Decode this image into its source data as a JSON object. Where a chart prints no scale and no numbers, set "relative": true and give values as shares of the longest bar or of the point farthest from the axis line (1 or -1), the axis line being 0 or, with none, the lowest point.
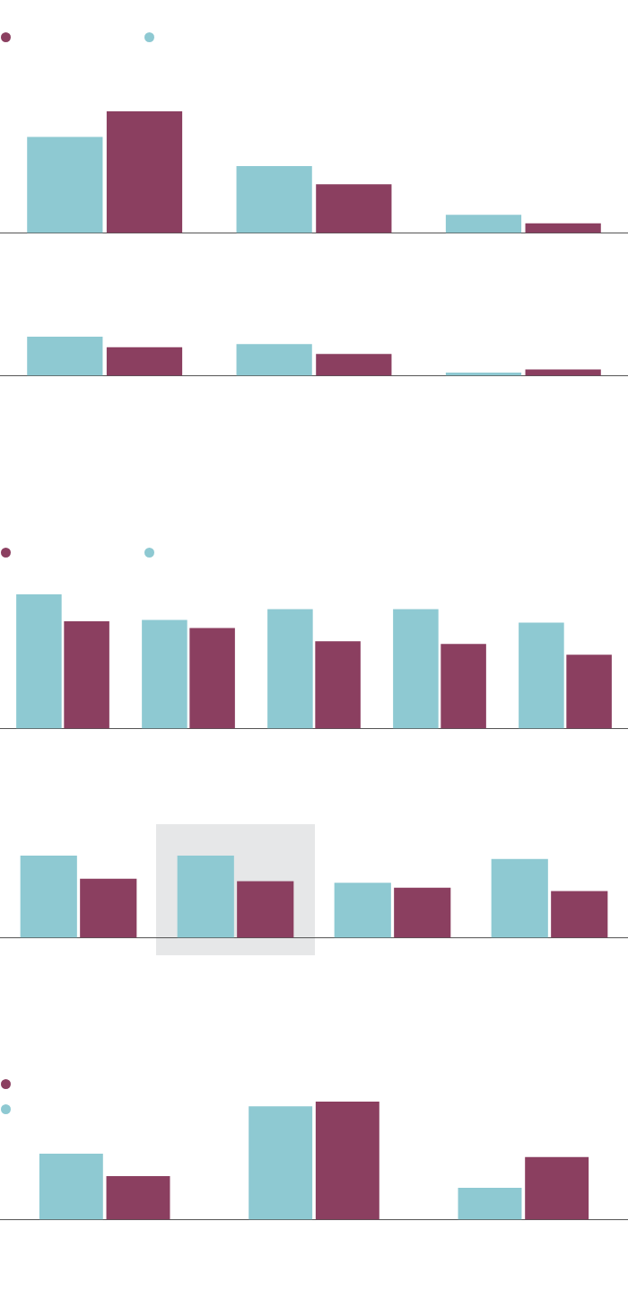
{
  "chart_data": [
    {
      "type": "bar",
      "relative": true,
      "categories": [
        null,
        null,
        null
      ],
      "series": [
        {
          "color": "#8ec9d2",
          "values": [
            0.79,
            0.55,
            0.15
          ]
        },
        {
          "color": "#8b3f60",
          "values": [
            1,
            0.4,
            0.08
          ]
        }
      ]
    },
    {
      "type": "bar",
      "relative": true,
      "categories": [
        null,
        null,
        null
      ],
      "series": [
        {
          "color": "#8ec9d2",
          "values": [
            1,
            0.81,
            0.08
          ]
        },
        {
          "color": "#8b3f60",
          "values": [
            0.73,
            0.56,
            0.16
          ]
        }
      ]
    },
    {
      "type": "bar",
      "relative": true,
      "categories": [
        null,
        null,
        null,
        null,
        null
      ],
      "series": [
        {
          "color": "#8ec9d2",
          "values": [
            1,
            0.81,
            0.89,
            0.89,
            0.79
          ]
        },
        {
          "color": "#8b3f60",
          "values": [
            0.8,
            0.75,
            0.65,
            0.63,
            0.55
          ]
        }
      ]
    },
    {
      "type": "bar",
      "relative": true,
      "categories": [
        null,
        null,
        null,
        null
      ],
      "series": [
        {
          "color": "#8ec9d2",
          "values": [
            1,
            1,
            0.67,
            0.96
          ]
        },
        {
          "color": "#8b3f60",
          "values": [
            0.72,
            0.69,
            0.61,
            0.57
          ]
        }
      ]
    },
    {
      "type": "bar",
      "relative": true,
      "categories": [
        null,
        null,
        null
      ],
      "series": [
        {
          "color": "#8ec9d2",
          "values": [
            0.56,
            0.96,
            0.27
          ]
        },
        {
          "color": "#8b3f60",
          "values": [
            0.37,
            1,
            0.53
          ]
        }
      ]
    }
  ]
}
